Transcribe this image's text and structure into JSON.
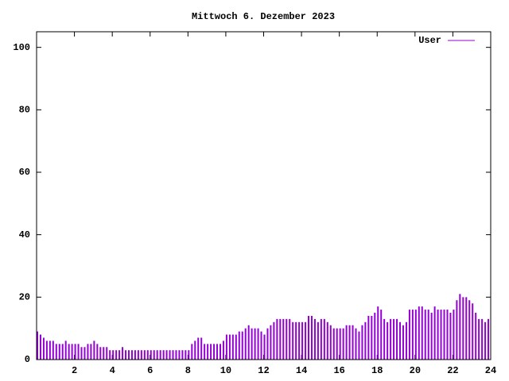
{
  "chart_data": {
    "type": "impulse",
    "title": "Mittwoch 6. Dezember 2023",
    "x": [
      0,
      0.167,
      0.333,
      0.5,
      0.667,
      0.833,
      1,
      1.167,
      1.333,
      1.5,
      1.667,
      1.833,
      2,
      2.167,
      2.333,
      2.5,
      2.667,
      2.833,
      3,
      3.167,
      3.333,
      3.5,
      3.667,
      3.833,
      4,
      4.167,
      4.333,
      4.5,
      4.667,
      4.833,
      5,
      5.167,
      5.333,
      5.5,
      5.667,
      5.833,
      6,
      6.167,
      6.333,
      6.5,
      6.667,
      6.833,
      7,
      7.167,
      7.333,
      7.5,
      7.667,
      7.833,
      8,
      8.167,
      8.333,
      8.5,
      8.667,
      8.833,
      9,
      9.167,
      9.333,
      9.5,
      9.667,
      9.833,
      10,
      10.167,
      10.333,
      10.5,
      10.667,
      10.833,
      11,
      11.167,
      11.333,
      11.5,
      11.667,
      11.833,
      12,
      12.167,
      12.333,
      12.5,
      12.667,
      12.833,
      13,
      13.167,
      13.333,
      13.5,
      13.667,
      13.833,
      14,
      14.167,
      14.333,
      14.5,
      14.667,
      14.833,
      15,
      15.167,
      15.333,
      15.5,
      15.667,
      15.833,
      16,
      16.167,
      16.333,
      16.5,
      16.667,
      16.833,
      17,
      17.167,
      17.333,
      17.5,
      17.667,
      17.833,
      18,
      18.167,
      18.333,
      18.5,
      18.667,
      18.833,
      19,
      19.167,
      19.333,
      19.5,
      19.667,
      19.833,
      20,
      20.167,
      20.333,
      20.5,
      20.667,
      20.833,
      21,
      21.167,
      21.333,
      21.5,
      21.667,
      21.833,
      22,
      22.167,
      22.333,
      22.5,
      22.667,
      22.833,
      23,
      23.167,
      23.333,
      23.5,
      23.667,
      23.833
    ],
    "series": [
      {
        "name": "User",
        "color": "#9400d3",
        "values": [
          9,
          8,
          7,
          6,
          6,
          6,
          5,
          5,
          5,
          6,
          5,
          5,
          5,
          5,
          4,
          4,
          5,
          5,
          6,
          5,
          4,
          4,
          4,
          3,
          3,
          3,
          3,
          4,
          3,
          3,
          3,
          3,
          3,
          3,
          3,
          3,
          3,
          3,
          3,
          3,
          3,
          3,
          3,
          3,
          3,
          3,
          3,
          3,
          3,
          5,
          6,
          7,
          7,
          5,
          5,
          5,
          5,
          5,
          5,
          6,
          8,
          8,
          8,
          8,
          9,
          9,
          10,
          11,
          10,
          10,
          10,
          9,
          8,
          10,
          11,
          12,
          13,
          13,
          13,
          13,
          13,
          12,
          12,
          12,
          12,
          12,
          14,
          14,
          13,
          12,
          13,
          13,
          12,
          11,
          10,
          10,
          10,
          10,
          11,
          11,
          11,
          10,
          9,
          11,
          12,
          14,
          14,
          15,
          17,
          16,
          13,
          12,
          13,
          13,
          13,
          12,
          11,
          12,
          16,
          16,
          16,
          17,
          17,
          16,
          16,
          15,
          17,
          16,
          16,
          16,
          16,
          15,
          16,
          19,
          21,
          20,
          20,
          19,
          18,
          15,
          13,
          13,
          12,
          13
        ]
      }
    ],
    "xlim": [
      0,
      24
    ],
    "xticks": [
      2,
      4,
      6,
      8,
      10,
      12,
      14,
      16,
      18,
      20,
      22,
      24
    ],
    "ylim": [
      0,
      105
    ],
    "yticks": [
      0,
      20,
      40,
      60,
      80,
      100
    ],
    "legend": "top-right"
  }
}
